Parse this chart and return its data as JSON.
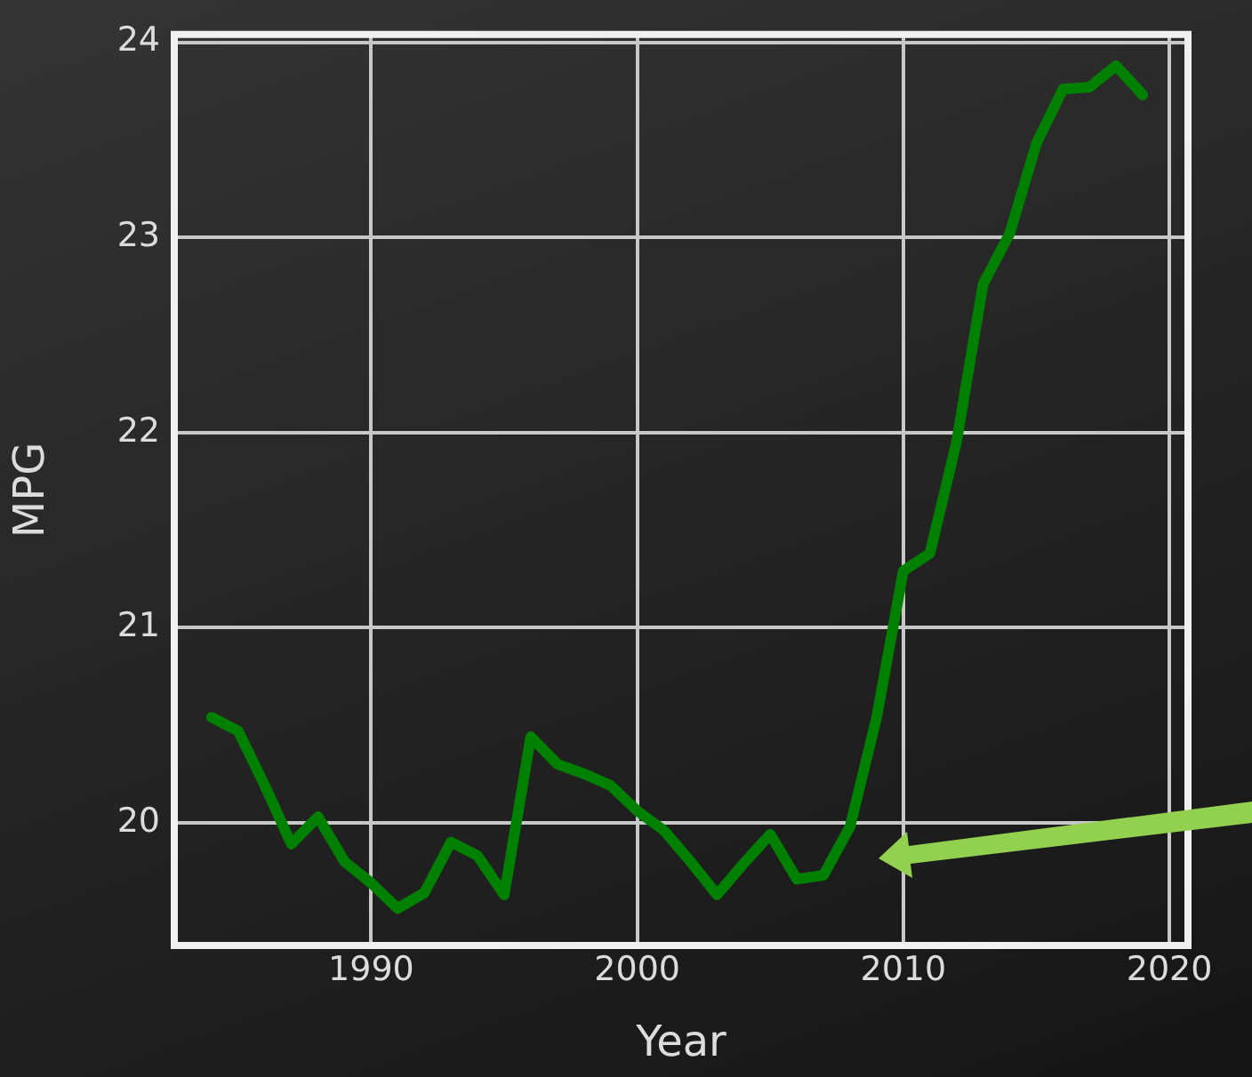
{
  "chart_data": {
    "type": "line",
    "xlabel": "Year",
    "ylabel": "MPG",
    "x": [
      1984,
      1985,
      1986,
      1987,
      1988,
      1989,
      1990,
      1991,
      1992,
      1993,
      1994,
      1995,
      1996,
      1997,
      1998,
      1999,
      2000,
      2001,
      2002,
      2003,
      2004,
      2005,
      2006,
      2007,
      2008,
      2009,
      2010,
      2011,
      2012,
      2013,
      2014,
      2015,
      2016,
      2017,
      2018,
      2019
    ],
    "series": [
      {
        "color": "#008000",
        "values": [
          20.54,
          20.47,
          20.19,
          19.89,
          20.03,
          19.8,
          19.69,
          19.56,
          19.64,
          19.9,
          19.83,
          19.63,
          20.44,
          20.3,
          20.25,
          20.19,
          20.06,
          19.96,
          19.8,
          19.63,
          19.79,
          19.94,
          19.71,
          19.73,
          19.98,
          20.54,
          21.29,
          21.38,
          21.95,
          22.76,
          23.02,
          23.48,
          23.76,
          23.77,
          23.88,
          23.73
        ]
      }
    ],
    "xlim": [
      1982.6,
      2020.7
    ],
    "xticks": [
      1990,
      2000,
      2010,
      2020
    ],
    "ylim": [
      19.37,
      24.04
    ],
    "yticks": [
      20,
      21,
      22,
      23,
      24
    ],
    "grid": true,
    "legend": false,
    "marker": "none",
    "line_style": "solid"
  }
}
